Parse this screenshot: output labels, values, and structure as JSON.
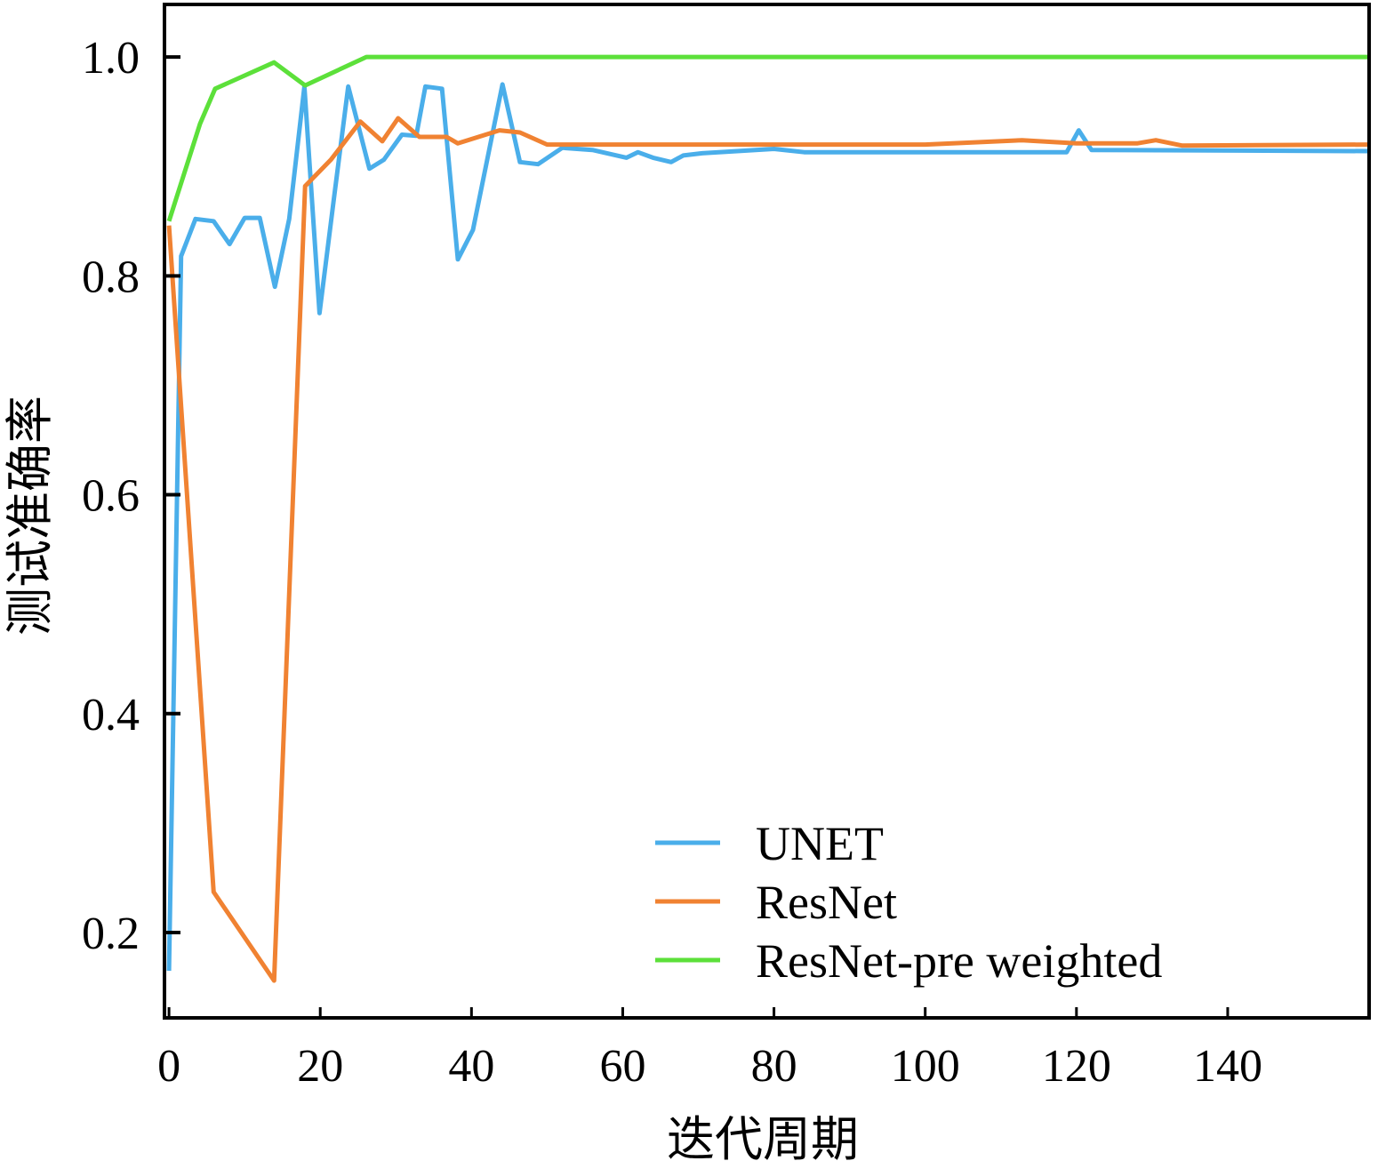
{
  "chart_data": {
    "type": "line",
    "title": "",
    "xlabel": "迭代周期",
    "ylabel": "测试准确率",
    "xlim": [
      -0.6,
      158.7
    ],
    "ylim": [
      0.122,
      1.048
    ],
    "xticks": [
      0,
      20,
      40,
      60,
      80,
      100,
      120,
      140
    ],
    "xtick_labels": [
      "0",
      "20",
      "40",
      "60",
      "80",
      "100",
      "120",
      "140"
    ],
    "yticks": [
      0.2,
      0.4,
      0.6,
      0.8,
      1.0
    ],
    "ytick_labels": [
      "0.2",
      "0.4",
      "0.6",
      "0.8",
      "1.0"
    ],
    "grid": false,
    "legend_position": "bottom-right",
    "series": [
      {
        "name": "UNET",
        "color": "#4aaeea",
        "points": [
          [
            0,
            0.165
          ],
          [
            1.6,
            0.818
          ],
          [
            3.5,
            0.852
          ],
          [
            5.9,
            0.85
          ],
          [
            8,
            0.829
          ],
          [
            10,
            0.853
          ],
          [
            12,
            0.853
          ],
          [
            14,
            0.79
          ],
          [
            15.9,
            0.852
          ],
          [
            17.9,
            0.973
          ],
          [
            19.9,
            0.766
          ],
          [
            21.8,
            0.87
          ],
          [
            23.7,
            0.973
          ],
          [
            26.5,
            0.898
          ],
          [
            28.4,
            0.906
          ],
          [
            30.8,
            0.929
          ],
          [
            32.7,
            0.928
          ],
          [
            33.9,
            0.973
          ],
          [
            36.1,
            0.971
          ],
          [
            38.2,
            0.815
          ],
          [
            40.2,
            0.842
          ],
          [
            44.1,
            0.975
          ],
          [
            46.4,
            0.904
          ],
          [
            48.8,
            0.902
          ],
          [
            52,
            0.917
          ],
          [
            56,
            0.915
          ],
          [
            60.5,
            0.908
          ],
          [
            62,
            0.913
          ],
          [
            64,
            0.908
          ],
          [
            66.4,
            0.904
          ],
          [
            68,
            0.91
          ],
          [
            70.5,
            0.912
          ],
          [
            80,
            0.916
          ],
          [
            84,
            0.913
          ],
          [
            118.7,
            0.913
          ],
          [
            120.3,
            0.933
          ],
          [
            122,
            0.915
          ],
          [
            158.7,
            0.914
          ]
        ]
      },
      {
        "name": "ResNet",
        "color": "#f08232",
        "points": [
          [
            0,
            0.846
          ],
          [
            5.9,
            0.237
          ],
          [
            13.9,
            0.156
          ],
          [
            18,
            0.882
          ],
          [
            21.4,
            0.906
          ],
          [
            25.3,
            0.941
          ],
          [
            28.2,
            0.923
          ],
          [
            30.3,
            0.944
          ],
          [
            33.1,
            0.927
          ],
          [
            36.7,
            0.927
          ],
          [
            38.2,
            0.921
          ],
          [
            43.7,
            0.933
          ],
          [
            46.4,
            0.931
          ],
          [
            50,
            0.92
          ],
          [
            80,
            0.92
          ],
          [
            100,
            0.92
          ],
          [
            112.8,
            0.924
          ],
          [
            120,
            0.921
          ],
          [
            128,
            0.921
          ],
          [
            130.5,
            0.924
          ],
          [
            134,
            0.919
          ],
          [
            158.7,
            0.92
          ]
        ]
      },
      {
        "name": "ResNet-pre weighted",
        "color": "#5ce03a",
        "points": [
          [
            0,
            0.85
          ],
          [
            4.1,
            0.939
          ],
          [
            6.1,
            0.971
          ],
          [
            13.9,
            0.995
          ],
          [
            18,
            0.974
          ],
          [
            26.1,
            1.0
          ],
          [
            158.7,
            1.0
          ]
        ]
      }
    ]
  }
}
